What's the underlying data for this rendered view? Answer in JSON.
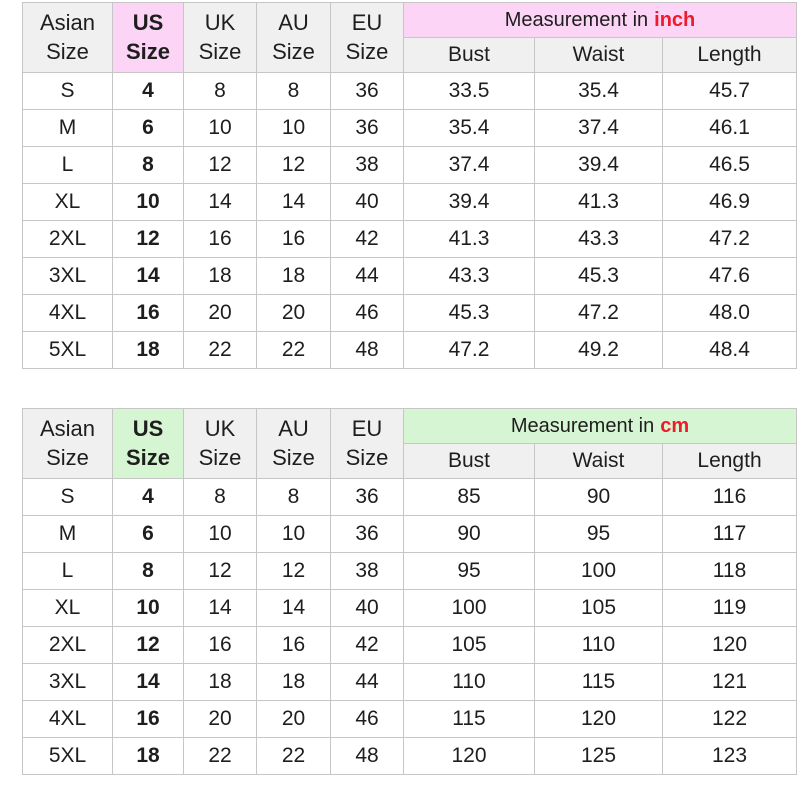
{
  "accent_colors": {
    "inch_pink": "#fbd4f6",
    "cm_green": "#d6f5d2",
    "unit_red": "#ec1b2e"
  },
  "chart_data": [
    {
      "type": "table",
      "title": "Measurement in inch",
      "measurement_title_prefix": "Measurement in",
      "measurement_unit": "inch",
      "accent_color": "#fbd4f6",
      "unit_color": "#ec1b2e",
      "size_column_headers": [
        "Asian\nSize",
        "US\nSize",
        "UK\nSize",
        "AU\nSize",
        "EU\nSize"
      ],
      "measure_column_headers": [
        "Bust",
        "Waist",
        "Length"
      ],
      "rows": [
        [
          "S",
          "4",
          "8",
          "8",
          "36",
          "33.5",
          "35.4",
          "45.7"
        ],
        [
          "M",
          "6",
          "10",
          "10",
          "36",
          "35.4",
          "37.4",
          "46.1"
        ],
        [
          "L",
          "8",
          "12",
          "12",
          "38",
          "37.4",
          "39.4",
          "46.5"
        ],
        [
          "XL",
          "10",
          "14",
          "14",
          "40",
          "39.4",
          "41.3",
          "46.9"
        ],
        [
          "2XL",
          "12",
          "16",
          "16",
          "42",
          "41.3",
          "43.3",
          "47.2"
        ],
        [
          "3XL",
          "14",
          "18",
          "18",
          "44",
          "43.3",
          "45.3",
          "47.6"
        ],
        [
          "4XL",
          "16",
          "20",
          "20",
          "46",
          "45.3",
          "47.2",
          "48.0"
        ],
        [
          "5XL",
          "18",
          "22",
          "22",
          "48",
          "47.2",
          "49.2",
          "48.4"
        ]
      ]
    },
    {
      "type": "table",
      "title": "Measurement in cm",
      "measurement_title_prefix": "Measurement in",
      "measurement_unit": "cm",
      "accent_color": "#d6f5d2",
      "unit_color": "#ec1b2e",
      "size_column_headers": [
        "Asian\nSize",
        "US\nSize",
        "UK\nSize",
        "AU\nSize",
        "EU\nSize"
      ],
      "measure_column_headers": [
        "Bust",
        "Waist",
        "Length"
      ],
      "rows": [
        [
          "S",
          "4",
          "8",
          "8",
          "36",
          "85",
          "90",
          "116"
        ],
        [
          "M",
          "6",
          "10",
          "10",
          "36",
          "90",
          "95",
          "117"
        ],
        [
          "L",
          "8",
          "12",
          "12",
          "38",
          "95",
          "100",
          "118"
        ],
        [
          "XL",
          "10",
          "14",
          "14",
          "40",
          "100",
          "105",
          "119"
        ],
        [
          "2XL",
          "12",
          "16",
          "16",
          "42",
          "105",
          "110",
          "120"
        ],
        [
          "3XL",
          "14",
          "18",
          "18",
          "44",
          "110",
          "115",
          "121"
        ],
        [
          "4XL",
          "16",
          "20",
          "20",
          "46",
          "115",
          "120",
          "122"
        ],
        [
          "5XL",
          "18",
          "22",
          "22",
          "48",
          "120",
          "125",
          "123"
        ]
      ]
    }
  ],
  "column_semantic_names": [
    "asian-size",
    "us-size",
    "uk-size",
    "au-size",
    "eu-size",
    "bust",
    "waist",
    "length"
  ],
  "us_column_index": 1
}
